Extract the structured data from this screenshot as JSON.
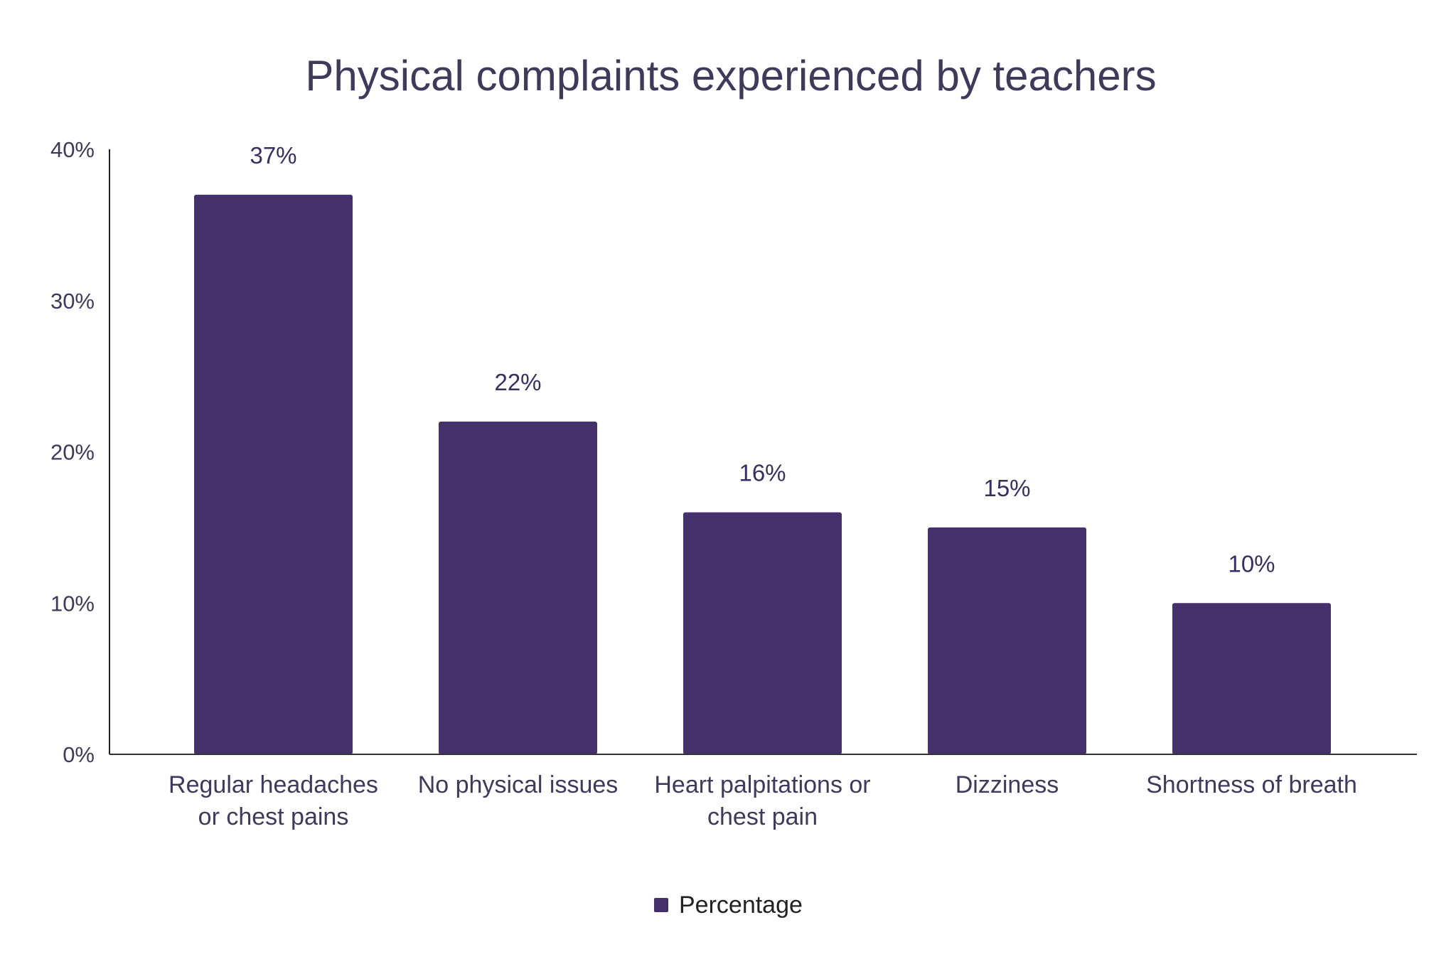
{
  "chart_data": {
    "type": "bar",
    "title": "Physical complaints experienced by teachers",
    "categories": [
      [
        "Regular headaches",
        "or chest pains"
      ],
      [
        "No physical issues"
      ],
      [
        "Heart palpitations or",
        "chest pain"
      ],
      [
        "Dizziness"
      ],
      [
        "Shortness of breath"
      ]
    ],
    "series": [
      {
        "name": "Percentage",
        "values": [
          37,
          22,
          16,
          15,
          10
        ],
        "color": "#44306a"
      }
    ],
    "data_labels": [
      "37%",
      "22%",
      "16%",
      "15%",
      "10%"
    ],
    "yticks": [
      0,
      10,
      20,
      30,
      40
    ],
    "ytick_labels": [
      "0%",
      "10%",
      "20%",
      "30%",
      "40%"
    ],
    "ylim": [
      0,
      40
    ],
    "xlabel": "",
    "ylabel": "",
    "grid": false,
    "legend": {
      "position": "bottom",
      "label": "Percentage"
    },
    "text_color": "#3f3a5a"
  }
}
